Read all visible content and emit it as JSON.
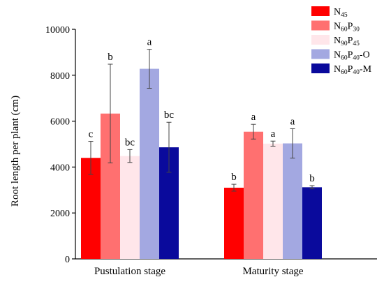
{
  "chart_data": {
    "type": "bar",
    "title": "",
    "xlabel": "",
    "ylabel": "Root length per plant (cm)",
    "ylim": [
      0,
      10000
    ],
    "yticks": [
      0,
      2000,
      4000,
      6000,
      8000,
      10000
    ],
    "grid": false,
    "legend_position": "top-right",
    "categories": [
      "Pustulation stage",
      "Maturity stage"
    ],
    "series": [
      {
        "name": "N45",
        "legend_parts": [
          {
            "text": "N",
            "sub": false
          },
          {
            "text": "45",
            "sub": true
          }
        ],
        "color": "#ff0000",
        "values": [
          4400,
          3100
        ],
        "errors": [
          720,
          150
        ],
        "letters": [
          "c",
          "b"
        ]
      },
      {
        "name": "N60P30",
        "legend_parts": [
          {
            "text": "N",
            "sub": false
          },
          {
            "text": "60",
            "sub": true
          },
          {
            "text": "P",
            "sub": false
          },
          {
            "text": "30",
            "sub": true
          }
        ],
        "color": "#ff7070",
        "values": [
          6330,
          5540
        ],
        "errors": [
          2150,
          320
        ],
        "letters": [
          "b",
          "a"
        ]
      },
      {
        "name": "N90P45",
        "legend_parts": [
          {
            "text": "N",
            "sub": false
          },
          {
            "text": "90",
            "sub": true
          },
          {
            "text": "P",
            "sub": false
          },
          {
            "text": "45",
            "sub": true
          }
        ],
        "color": "#ffe6ea",
        "values": [
          4480,
          5020
        ],
        "errors": [
          280,
          110
        ],
        "letters": [
          "bc",
          "a"
        ]
      },
      {
        "name": "N60P40-O",
        "legend_parts": [
          {
            "text": "N",
            "sub": false
          },
          {
            "text": "60",
            "sub": true
          },
          {
            "text": "P",
            "sub": false
          },
          {
            "text": "40",
            "sub": true
          },
          {
            "text": "-O",
            "sub": false
          }
        ],
        "color": "#a3a8e1",
        "values": [
          8280,
          5030
        ],
        "errors": [
          850,
          640
        ],
        "letters": [
          "a",
          "a"
        ]
      },
      {
        "name": "N60P40-M",
        "legend_parts": [
          {
            "text": "N",
            "sub": false
          },
          {
            "text": "60",
            "sub": true
          },
          {
            "text": "P",
            "sub": false
          },
          {
            "text": "40",
            "sub": true
          },
          {
            "text": "-M",
            "sub": false
          }
        ],
        "color": "#0a0a9c",
        "values": [
          4860,
          3120
        ],
        "errors": [
          1090,
          70
        ],
        "letters": [
          "bc",
          "b"
        ]
      }
    ]
  }
}
